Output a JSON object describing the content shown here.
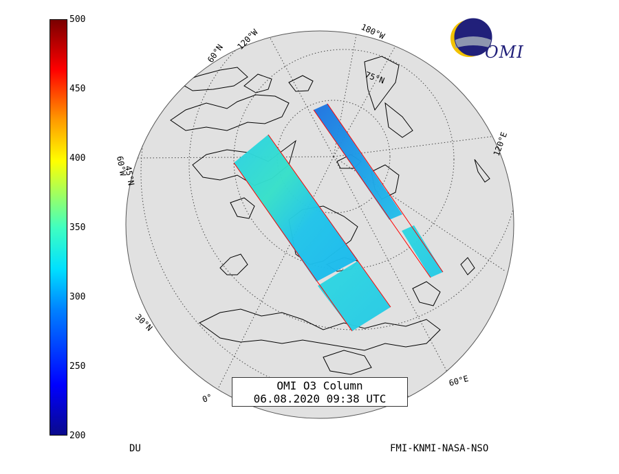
{
  "colorbar": {
    "unit": "DU",
    "min": 200,
    "max": 500,
    "ticks": [
      "500",
      "450",
      "400",
      "350",
      "300",
      "250",
      "200"
    ]
  },
  "title": {
    "line1": "OMI O3 Column",
    "line2": "06.08.2020 09:38 UTC"
  },
  "credit": "FMI-KNMI-NASA-NSO",
  "logo": {
    "text": "OMI"
  },
  "graticule_labels": {
    "lat_60n": "60°N",
    "lat_75n": "75°N",
    "lat_45n": "45°N",
    "lat_30n": "30°N",
    "lon_120w": "120°W",
    "lon_180w": "180°W",
    "lon_120e": "120°E",
    "lon_60e": "60°E",
    "lon_60w": "60°W",
    "lon_0": "0°"
  },
  "colors": {
    "globe_fill": "#e1e1e1",
    "swath_edge": "#ff0000",
    "logo_blue": "#21207a",
    "logo_yellow": "#f2c200"
  }
}
